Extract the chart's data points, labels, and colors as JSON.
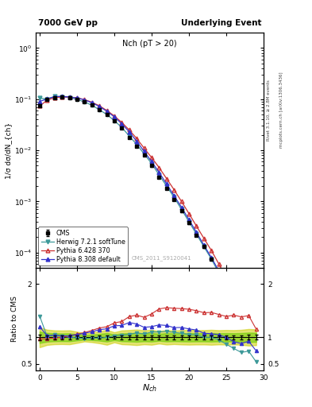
{
  "title_left": "7000 GeV pp",
  "title_right": "Underlying Event",
  "plot_title": "Nch (pT > 20)",
  "ylabel_top": "1/σ dσ/dN_{ch}",
  "ylabel_bottom": "Ratio to CMS",
  "right_label_top": "Rivet 3.1.10, ≥ 2.8M events",
  "right_label_bottom": "mcplots.cern.ch [arXiv:1306.3436]",
  "watermark": "CMS_2011_S9120041",
  "xmin": -0.5,
  "xmax": 30,
  "ylim_top_lo": 5e-05,
  "ylim_top_hi": 2.0,
  "ylim_bottom_lo": 0.38,
  "ylim_bottom_hi": 2.3,
  "cms_x": [
    0,
    1,
    2,
    3,
    4,
    5,
    6,
    7,
    8,
    9,
    10,
    11,
    12,
    13,
    14,
    15,
    16,
    17,
    18,
    19,
    20,
    21,
    22,
    23,
    24,
    25,
    26,
    27,
    28,
    29
  ],
  "cms_y": [
    0.075,
    0.098,
    0.108,
    0.11,
    0.107,
    0.1,
    0.09,
    0.077,
    0.063,
    0.05,
    0.037,
    0.027,
    0.018,
    0.012,
    0.008,
    0.005,
    0.003,
    0.0018,
    0.0011,
    0.00065,
    0.00038,
    0.00022,
    0.00013,
    7.5e-05,
    4.2e-05,
    2.3e-05,
    1.2e-05,
    6e-06,
    2.7e-06,
    1.3e-06
  ],
  "cms_yerr": [
    0.004,
    0.004,
    0.004,
    0.004,
    0.004,
    0.003,
    0.002,
    0.002,
    0.002,
    0.002,
    0.001,
    0.001,
    0.0007,
    0.0005,
    0.0003,
    0.0002,
    0.0001,
    7e-05,
    4e-05,
    2.5e-05,
    1.5e-05,
    8.5e-06,
    5e-06,
    3e-06,
    1.6e-06,
    9e-07,
    4.6e-07,
    2.4e-07,
    1.2e-07,
    5.5e-08
  ],
  "herwig_x": [
    0,
    1,
    2,
    3,
    4,
    5,
    6,
    7,
    8,
    9,
    10,
    11,
    12,
    13,
    14,
    15,
    16,
    17,
    18,
    19,
    20,
    21,
    22,
    23,
    24,
    25,
    26,
    27,
    28,
    29
  ],
  "herwig_y": [
    0.105,
    0.1,
    0.113,
    0.112,
    0.107,
    0.099,
    0.088,
    0.076,
    0.062,
    0.05,
    0.038,
    0.028,
    0.019,
    0.013,
    0.0085,
    0.0055,
    0.0033,
    0.002,
    0.0012,
    0.0007,
    0.0004,
    0.00023,
    0.00013,
    7.5e-05,
    4e-05,
    2e-05,
    9.5e-06,
    4.3e-06,
    2e-06,
    7e-07
  ],
  "pythia6_x": [
    0,
    1,
    2,
    3,
    4,
    5,
    6,
    7,
    8,
    9,
    10,
    11,
    12,
    13,
    14,
    15,
    16,
    17,
    18,
    19,
    20,
    21,
    22,
    23,
    24,
    25,
    26,
    27,
    28,
    29
  ],
  "pythia6_y": [
    0.073,
    0.095,
    0.107,
    0.11,
    0.11,
    0.106,
    0.098,
    0.087,
    0.074,
    0.06,
    0.047,
    0.035,
    0.025,
    0.017,
    0.011,
    0.0072,
    0.0046,
    0.0028,
    0.0017,
    0.001,
    0.00058,
    0.00033,
    0.00019,
    0.00011,
    6e-05,
    3.2e-05,
    1.7e-05,
    8.3e-06,
    3.8e-06,
    1.5e-06
  ],
  "pythia8_x": [
    0,
    1,
    2,
    3,
    4,
    5,
    6,
    7,
    8,
    9,
    10,
    11,
    12,
    13,
    14,
    15,
    16,
    17,
    18,
    19,
    20,
    21,
    22,
    23,
    24,
    25,
    26,
    27,
    28,
    29
  ],
  "pythia8_y": [
    0.09,
    0.101,
    0.112,
    0.113,
    0.11,
    0.105,
    0.097,
    0.085,
    0.072,
    0.058,
    0.045,
    0.033,
    0.023,
    0.015,
    0.0095,
    0.006,
    0.0037,
    0.0022,
    0.0013,
    0.00077,
    0.00044,
    0.00025,
    0.00014,
    8e-05,
    4.4e-05,
    2.3e-05,
    1.1e-05,
    5.3e-06,
    2.5e-06,
    9.7e-07
  ],
  "herwig_color": "#3d9999",
  "pythia6_color": "#cc3333",
  "pythia8_color": "#3333cc",
  "cms_color": "#000000",
  "band_green": "#66cc00",
  "band_yellow": "#cccc00",
  "band_green_alpha": 0.55,
  "band_yellow_alpha": 0.55
}
